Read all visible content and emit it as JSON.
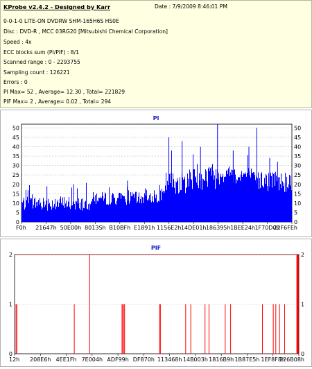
{
  "info": {
    "title": "KProbe v2.4.2 - Designed by Karr",
    "date": "Date : 7/9/2009 8:46:01 PM",
    "lines": [
      "0-0-1-0 LITE-ON DVDRW SHM-165H6S HS0E",
      "Disc : DVD-R , MCC 03RG20  [Mitsubishi Chemical Corporation]",
      "Speed : 4x",
      "ECC blocks sum (PI/PIF) : 8/1",
      "Scanned range : 0 - 2293755",
      "Sampling count : 126221",
      "Errors : 0",
      "PI Max= 52 , Average= 12.30 , Total= 221829",
      "PIF Max= 2 , Average= 0.02 , Total= 294"
    ]
  },
  "colors": {
    "pi_fill": "#0000ff",
    "pif_bar": "#ff0000",
    "max_line": "#ff0000",
    "grid": "#c0c0c0",
    "panel_title": "#1a1ac8"
  },
  "chart_data": [
    {
      "type": "bar",
      "title": "PI",
      "ylim": [
        0,
        52
      ],
      "yticks": [
        0,
        5,
        10,
        15,
        20,
        25,
        30,
        35,
        40,
        45,
        50
      ],
      "ytick_labels": [
        "0",
        "5",
        "10",
        "15",
        "20",
        "25",
        "30",
        "35",
        "40",
        "45",
        "50"
      ],
      "xtick_labels": [
        "F0h",
        "21647h",
        "50E00h",
        "8013Sh",
        "B10BFh",
        "E1891h",
        "1156E2h",
        "14DE01h",
        "186395h",
        "1BEE24h",
        "1F70D0h",
        "22F6FEh"
      ],
      "grid": true,
      "series": [
        {
          "segments": [
            {
              "x": [
                0,
                25
              ],
              "y": [
                6,
                14
              ]
            },
            {
              "x": [
                25,
                45
              ],
              "y": [
                9,
                16
              ]
            },
            {
              "x": [
                45,
                53
              ],
              "y": [
                10,
                18
              ]
            },
            {
              "x": [
                53,
                62
              ],
              "y": [
                15,
                27
              ]
            },
            {
              "x": [
                62,
                72
              ],
              "y": [
                17,
                32
              ]
            },
            {
              "x": [
                72,
                85
              ],
              "y": [
                20,
                30
              ]
            },
            {
              "x": [
                85,
                100
              ],
              "y": [
                16,
                27
              ]
            }
          ],
          "peaks": [
            {
              "x": 9.4,
              "y": 19
            },
            {
              "x": 19.3,
              "y": 20
            },
            {
              "x": 39.2,
              "y": 22
            },
            {
              "x": 54.5,
              "y": 45
            },
            {
              "x": 55.5,
              "y": 38
            },
            {
              "x": 59.4,
              "y": 43
            },
            {
              "x": 66.2,
              "y": 40
            },
            {
              "x": 72.5,
              "y": 52
            },
            {
              "x": 78.3,
              "y": 38
            },
            {
              "x": 84.1,
              "y": 40
            },
            {
              "x": 87.0,
              "y": 50
            },
            {
              "x": 91.8,
              "y": 34
            },
            {
              "x": 94.7,
              "y": 32
            }
          ]
        }
      ]
    },
    {
      "type": "bar",
      "title": "PIF",
      "ylim": [
        0,
        2
      ],
      "yticks": [
        0,
        1,
        2
      ],
      "ytick_labels": [
        "0",
        "1",
        "2"
      ],
      "xtick_labels": [
        "12h",
        "208E6h",
        "4EE1Fh",
        "7E004h",
        "ADF99h",
        "DF870h",
        "113468h",
        "14B003h",
        "1816B9h",
        "1B87E5h",
        "1EF8F8h",
        "226B08h"
      ],
      "grid": true,
      "max_line": 2,
      "series": [
        {
          "x": [
            0.5,
            0.8,
            21.0,
            26.4,
            37.8,
            37.9,
            38.4,
            38.7,
            51.0,
            51.3,
            60.2,
            62.0,
            67.0,
            68.4,
            74.1,
            76.0,
            87.2,
            91.0,
            91.9,
            93.2,
            95.0,
            99.3,
            99.5,
            99.6,
            99.7,
            99.8
          ],
          "values": [
            1,
            1,
            1,
            2,
            1,
            1,
            1,
            1,
            1,
            1,
            1,
            1,
            1,
            1,
            1,
            1,
            1,
            1,
            1,
            1,
            1,
            2,
            2,
            2,
            2,
            2
          ]
        }
      ]
    }
  ]
}
